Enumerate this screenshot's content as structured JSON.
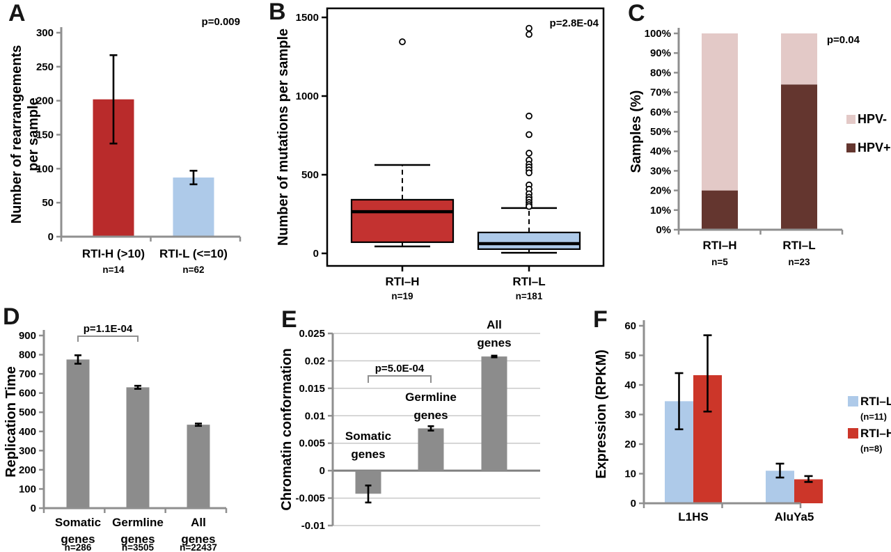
{
  "chart_data": [
    {
      "panel": "A",
      "type": "bar",
      "ylabel_lines": [
        "Number of rearrangements",
        "per sample"
      ],
      "ylim": [
        0,
        300
      ],
      "ytick_step": 50,
      "annotation": "p=0.009",
      "categories": [
        {
          "lines": [
            "RTI-H (>10)"
          ],
          "sub": "n=14"
        },
        {
          "lines": [
            "RTI-L (<=10)"
          ],
          "sub": "n=62"
        }
      ],
      "series": [
        {
          "values": [
            202,
            87
          ],
          "err_minus": [
            65,
            10
          ],
          "err_plus": [
            65,
            10
          ],
          "colors": [
            "#B92B2B",
            "#AECAE9"
          ]
        }
      ]
    },
    {
      "panel": "B",
      "type": "box",
      "ylabel_lines": [
        "Number of mutations per sample"
      ],
      "ylim": [
        0,
        1500
      ],
      "yticks": [
        0,
        500,
        1000,
        1500
      ],
      "annotation": "p=2.8E-04",
      "groups": [
        {
          "label": "RTI–H",
          "sub": "n=19",
          "color": "#C33230",
          "q1": 71,
          "median": 265,
          "q3": 341,
          "whisker_low": 44,
          "whisker_high": 562,
          "outliers": [
            1345
          ]
        },
        {
          "label": "RTI–L",
          "sub": "n=181",
          "color": "#AECAE9",
          "q1": 27,
          "median": 62,
          "q3": 133,
          "whisker_low": 4,
          "whisker_high": 288,
          "outliers": [
            1431,
            1392,
            873,
            755,
            637,
            593,
            566,
            549,
            531,
            512,
            435,
            408,
            379,
            357,
            342,
            324,
            310,
            298
          ]
        }
      ]
    },
    {
      "panel": "C",
      "type": "stack",
      "ylabel_lines": [
        "Samples (%)"
      ],
      "ylim": [
        0,
        100
      ],
      "ytick_step": 10,
      "annotation": "p=0.04",
      "categories": [
        {
          "lines": [
            "RTI–H"
          ],
          "sub": "n=5"
        },
        {
          "lines": [
            "RTI–L"
          ],
          "sub": "n=23"
        }
      ],
      "series": [
        {
          "name": "HPV+",
          "color": "#64362F",
          "values": [
            20,
            74
          ]
        },
        {
          "name": "HPV-",
          "color": "#E3C9C7",
          "values": [
            80,
            26
          ]
        }
      ],
      "legend": [
        {
          "label": "HPV-",
          "color": "#E3C9C7"
        },
        {
          "label": "HPV+",
          "color": "#64362F"
        }
      ]
    },
    {
      "panel": "D",
      "type": "bar",
      "ylabel_lines": [
        "Replication Time"
      ],
      "ylim": [
        0,
        900
      ],
      "ytick_step": 100,
      "categories": [
        {
          "lines": [
            "Somatic",
            "genes"
          ],
          "sub": "n=286"
        },
        {
          "lines": [
            "Germline",
            "genes"
          ],
          "sub": "n=3505"
        },
        {
          "lines": [
            "All",
            "genes"
          ],
          "sub": "n=22437"
        }
      ],
      "series": [
        {
          "values": [
            775,
            630,
            435
          ],
          "err_minus": [
            22,
            8,
            6
          ],
          "err_plus": [
            22,
            8,
            6
          ],
          "colors": [
            "#8C8C8C",
            "#8C8C8C",
            "#8C8C8C"
          ]
        }
      ],
      "bracket": {
        "i0": 0,
        "i1": 1,
        "label": "p=1.1E-04"
      }
    },
    {
      "panel": "E",
      "type": "bar",
      "ylabel_lines": [
        "Chromatin conformation"
      ],
      "ylim": [
        -0.01,
        0.025
      ],
      "ytick_step": 0.005,
      "gridlines": true,
      "no_x_axis": true,
      "bar_labels": [
        {
          "lines": [
            "Somatic",
            "genes"
          ]
        },
        {
          "lines": [
            "Germline",
            "genes"
          ]
        },
        {
          "lines": [
            "All",
            "genes"
          ]
        }
      ],
      "series": [
        {
          "values": [
            -0.0042,
            0.0077,
            0.0208
          ],
          "err_minus": [
            0.0016,
            0.0004,
            0.00015
          ],
          "err_plus": [
            0.0015,
            0.0004,
            0.00015
          ],
          "colors": [
            "#8C8C8C",
            "#8C8C8C",
            "#8C8C8C"
          ]
        }
      ],
      "bracket": {
        "i0": 0,
        "i1": 1,
        "label": "p=5.0E-04"
      }
    },
    {
      "panel": "F",
      "type": "bar",
      "grouped": true,
      "ylabel_lines": [
        "Expression (RPKM)"
      ],
      "ylim": [
        0,
        60
      ],
      "ytick_step": 10,
      "categories": [
        {
          "lines": [
            "L1HS"
          ]
        },
        {
          "lines": [
            "AluYa5"
          ]
        }
      ],
      "series": [
        {
          "name": "RTI–L",
          "sub": "(n=11)",
          "color": "#AECAE9",
          "values": [
            34.5,
            11
          ],
          "err_minus": [
            9.5,
            2.3
          ],
          "err_plus": [
            9.5,
            2.4
          ]
        },
        {
          "name": "RTI–H",
          "sub": "(n=8)",
          "color": "#CC3629",
          "values": [
            43.3,
            8.1
          ],
          "err_minus": [
            12.3,
            0.9
          ],
          "err_plus": [
            13.5,
            1.1
          ]
        }
      ],
      "legend": [
        {
          "label": "RTI–L",
          "sub": "(n=11)",
          "color": "#AECAE9"
        },
        {
          "label": "RTI–H",
          "sub": "(n=8)",
          "color": "#CC3629"
        }
      ]
    }
  ]
}
